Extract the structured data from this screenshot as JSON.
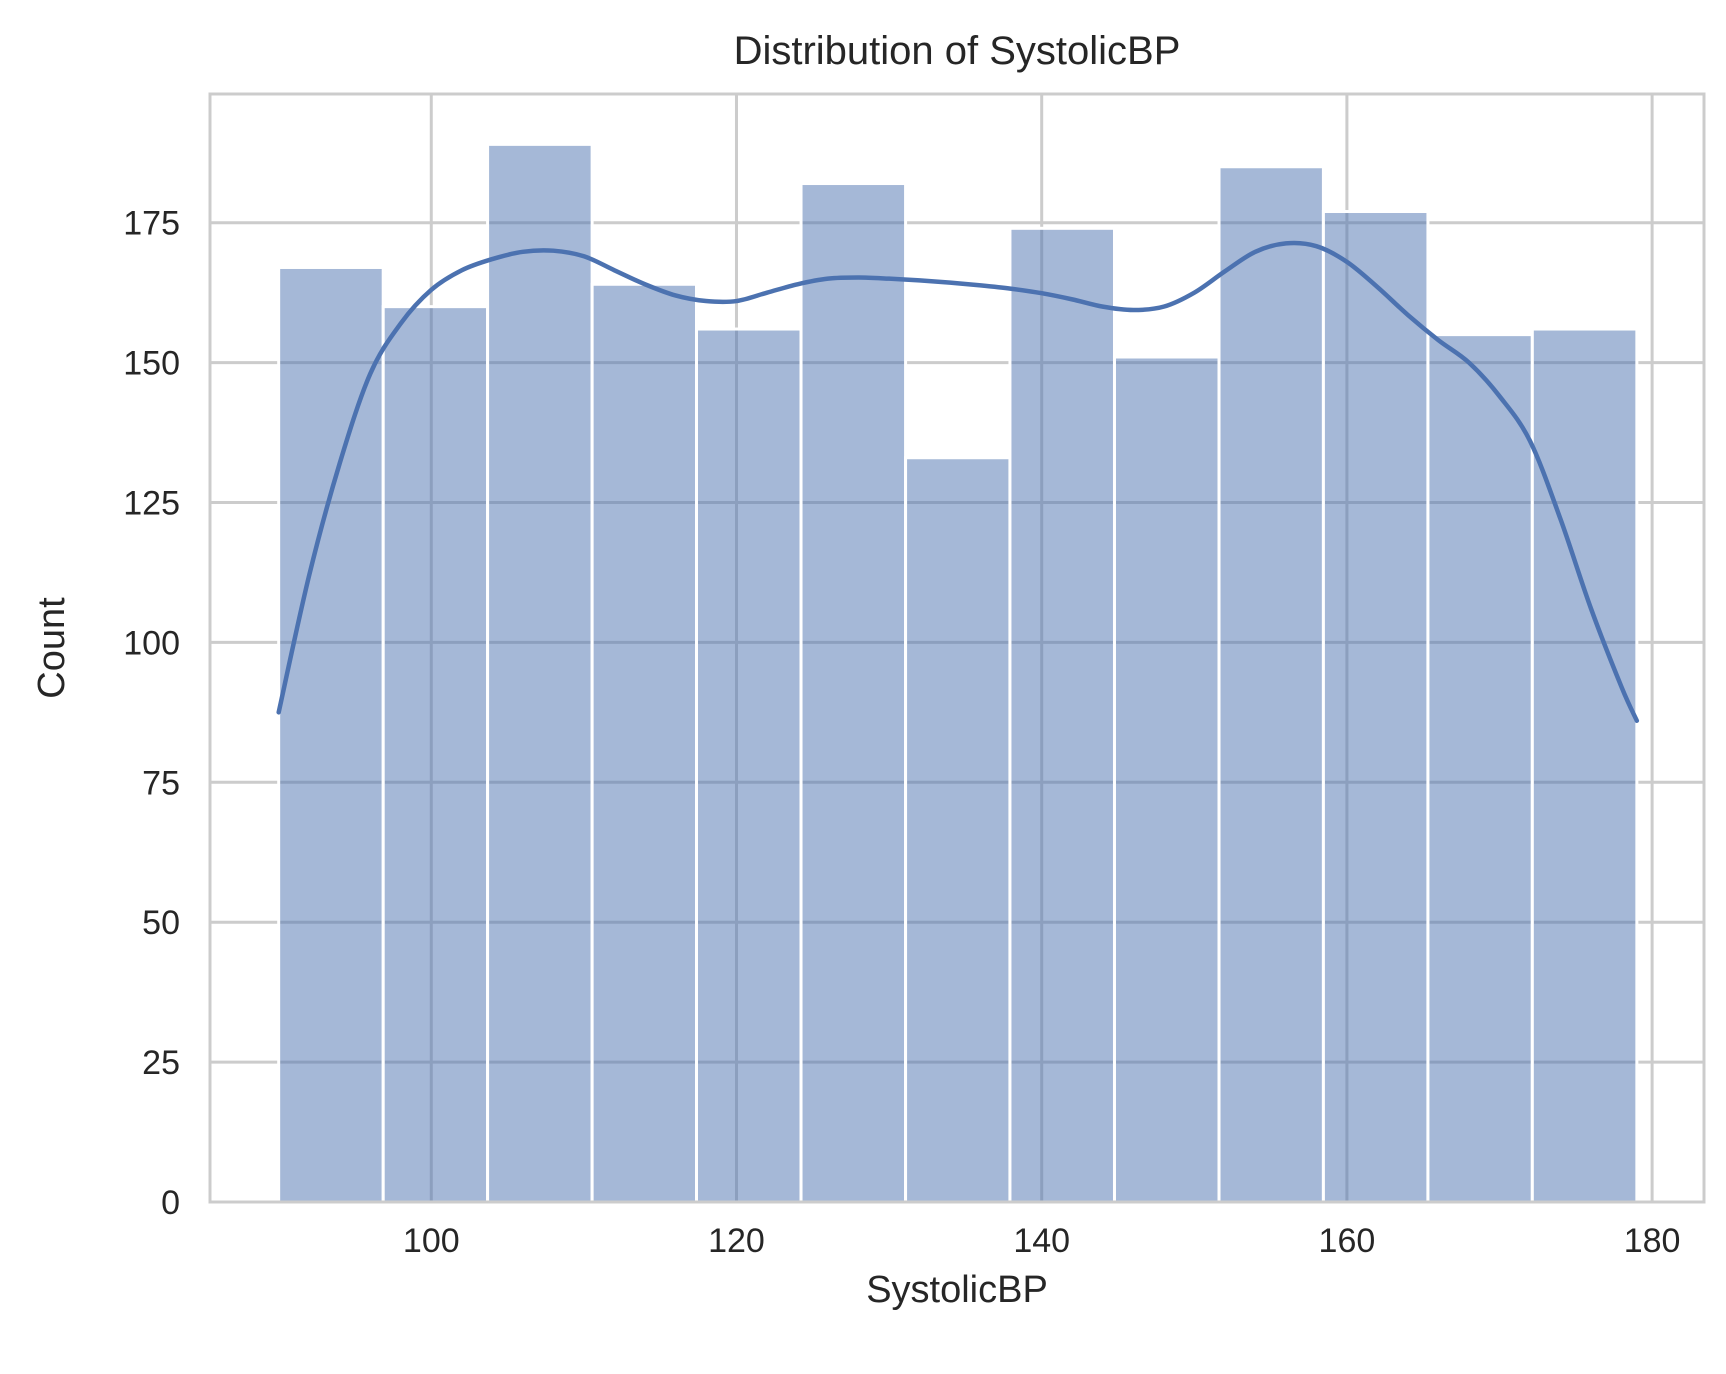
{
  "chart_data": {
    "type": "bar",
    "title": "Distribution of SystolicBP",
    "xlabel": "SystolicBP",
    "ylabel": "Count",
    "xlim": [
      85.5,
      183.4
    ],
    "ylim": [
      0,
      198
    ],
    "x_ticks": [
      100,
      120,
      140,
      160,
      180
    ],
    "y_ticks": [
      0,
      25,
      50,
      75,
      100,
      125,
      150,
      175
    ],
    "grid": true,
    "bar_color": "#4c72b0",
    "kde_color": "#4c72b0",
    "bins": [
      {
        "x0": 90.0,
        "x1": 96.85,
        "count": 167
      },
      {
        "x0": 96.85,
        "x1": 103.69,
        "count": 160
      },
      {
        "x0": 103.69,
        "x1": 110.54,
        "count": 189
      },
      {
        "x0": 110.54,
        "x1": 117.38,
        "count": 164
      },
      {
        "x0": 117.38,
        "x1": 124.23,
        "count": 156
      },
      {
        "x0": 124.23,
        "x1": 131.08,
        "count": 182
      },
      {
        "x0": 131.08,
        "x1": 137.92,
        "count": 133
      },
      {
        "x0": 137.92,
        "x1": 144.77,
        "count": 174
      },
      {
        "x0": 144.77,
        "x1": 151.62,
        "count": 151
      },
      {
        "x0": 151.62,
        "x1": 158.46,
        "count": 185
      },
      {
        "x0": 158.46,
        "x1": 165.31,
        "count": 177
      },
      {
        "x0": 165.31,
        "x1": 172.15,
        "count": 155
      },
      {
        "x0": 172.15,
        "x1": 179.0,
        "count": 156
      }
    ],
    "kde": {
      "x": [
        90,
        92,
        94,
        96,
        98,
        100,
        102,
        104,
        106,
        108,
        110,
        112,
        114,
        116,
        118,
        120,
        122,
        124,
        126,
        128,
        130,
        132,
        134,
        136,
        138,
        140,
        142,
        144,
        146,
        148,
        150,
        152,
        154,
        156,
        158,
        160,
        162,
        164,
        166,
        168,
        170,
        172,
        174,
        176,
        178,
        179
      ],
      "y": [
        87.5,
        112,
        132,
        148,
        157,
        163,
        166.5,
        168.5,
        169.8,
        170,
        169,
        166.5,
        164,
        162,
        161,
        161,
        162.5,
        164,
        165,
        165.2,
        165,
        164.7,
        164.3,
        163.8,
        163.2,
        162.4,
        161.3,
        160,
        159.4,
        160,
        162.5,
        166.3,
        169.8,
        171.3,
        170.8,
        168,
        163.5,
        158.5,
        154,
        150,
        144,
        136,
        122,
        106,
        92,
        86
      ]
    }
  }
}
